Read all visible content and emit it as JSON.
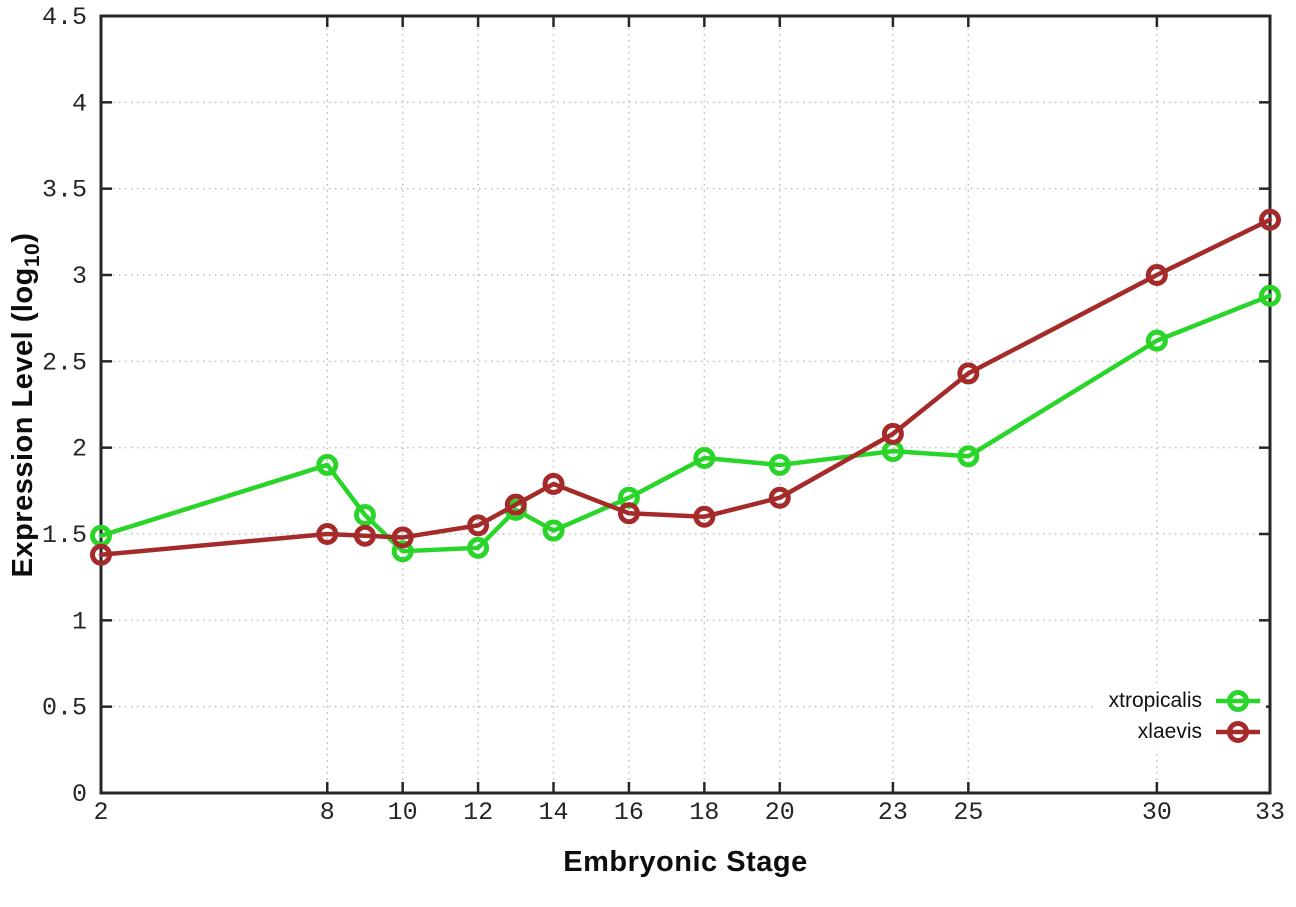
{
  "labels": {
    "y_axis_main": "Expression Level (log",
    "y_axis_sub": "10",
    "y_axis_end": ")",
    "x_axis": "Embryonic Stage"
  },
  "chart_data": {
    "type": "line",
    "title": "",
    "xlabel": "Embryonic Stage",
    "ylabel": "Expression Level (log10)",
    "xlim": [
      2,
      33
    ],
    "ylim": [
      0,
      4.5
    ],
    "grid": true,
    "grid_style": "dotted",
    "legend_position": "bottom-right",
    "x_ticks": [
      2,
      8,
      10,
      12,
      14,
      16,
      18,
      20,
      23,
      25,
      30,
      33
    ],
    "x_tick_labels": [
      "2",
      "8",
      "10",
      "12",
      "14",
      "16",
      "18",
      "20",
      "23",
      "25",
      "30",
      "33"
    ],
    "y_ticks": [
      0,
      0.5,
      1,
      1.5,
      2,
      2.5,
      3,
      3.5,
      4,
      4.5
    ],
    "y_tick_labels": [
      "0",
      "0.5",
      "1",
      "1.5",
      "2",
      "2.5",
      "3",
      "3.5",
      "4",
      "4.5"
    ],
    "x": [
      2,
      8,
      9,
      10,
      12,
      13,
      14,
      16,
      18,
      20,
      23,
      25,
      30,
      33
    ],
    "series": [
      {
        "name": "xtropicalis",
        "color": "#2ad52a",
        "marker": "open-circle",
        "values": [
          1.49,
          1.9,
          1.61,
          1.4,
          1.42,
          1.64,
          1.52,
          1.71,
          1.94,
          1.9,
          1.98,
          1.95,
          2.62,
          2.88
        ]
      },
      {
        "name": "xlaevis",
        "color": "#a52a2a",
        "marker": "open-circle",
        "values": [
          1.38,
          1.5,
          1.49,
          1.48,
          1.55,
          1.67,
          1.79,
          1.62,
          1.6,
          1.71,
          2.08,
          2.43,
          3.0,
          3.32
        ]
      }
    ],
    "style": {
      "axis_color": "#262626",
      "grid_color": "#bdbdbd",
      "background": "#ffffff"
    }
  }
}
